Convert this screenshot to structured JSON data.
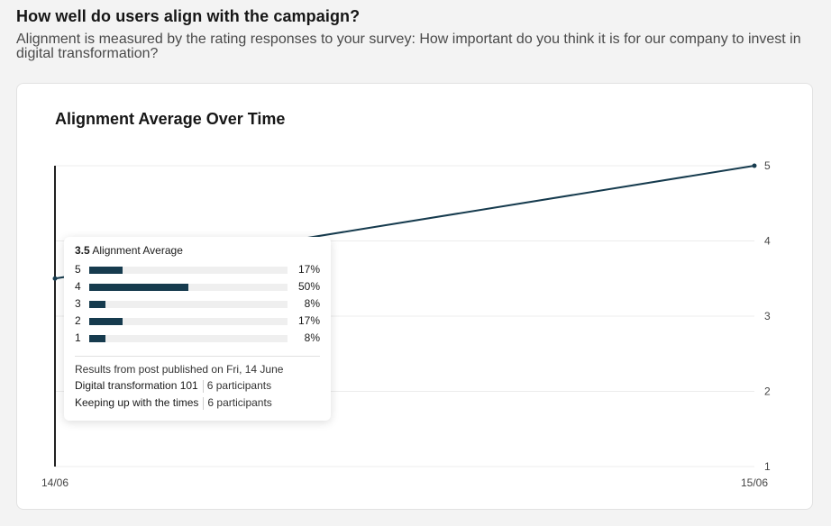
{
  "page": {
    "title": "How well do users align with the campaign?",
    "subtitle": "Alignment is measured by the rating responses to your survey: How important do you think it is for our company to invest in digital transformation?"
  },
  "chart_data": {
    "type": "line",
    "title": "Alignment Average Over Time",
    "x": [
      "14/06",
      "15/06"
    ],
    "series": [
      {
        "values": [
          3.5,
          5.0
        ]
      }
    ],
    "ylim": [
      1,
      5
    ],
    "yticks": [
      "1",
      "2",
      "3",
      "4",
      "5"
    ],
    "y_axis_side": "right",
    "grid": true,
    "color": "#163b4e"
  },
  "tooltip": {
    "value": "3.5",
    "label": "Alignment Average",
    "distribution": [
      {
        "rating": "5",
        "percent": 17,
        "percent_label": "17%"
      },
      {
        "rating": "4",
        "percent": 50,
        "percent_label": "50%"
      },
      {
        "rating": "3",
        "percent": 8,
        "percent_label": "8%"
      },
      {
        "rating": "2",
        "percent": 17,
        "percent_label": "17%"
      },
      {
        "rating": "1",
        "percent": 8,
        "percent_label": "8%"
      }
    ],
    "result_text": "Results from post published on Fri, 14 June",
    "posts": [
      {
        "name": "Digital transformation 101",
        "participants": "6 participants"
      },
      {
        "name": "Keeping up with the times",
        "participants": "6 participants"
      }
    ]
  }
}
